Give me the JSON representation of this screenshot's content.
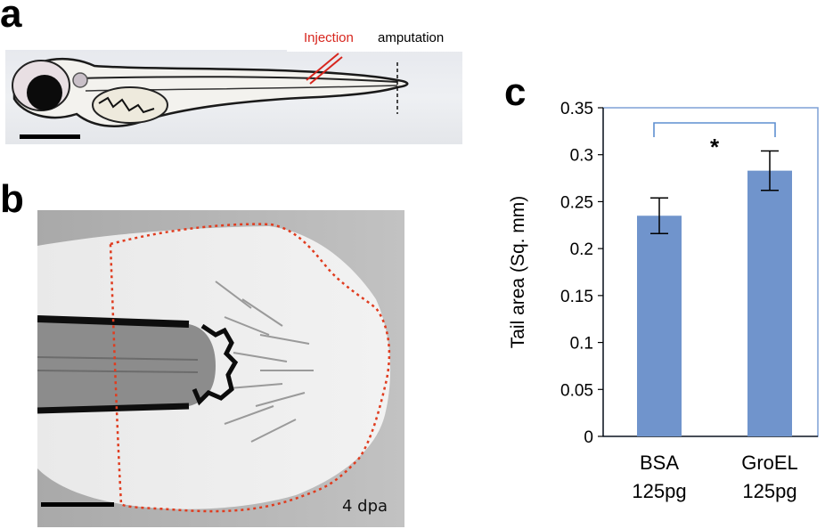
{
  "panels": {
    "a": {
      "letter": "a",
      "injection_label": "Injection",
      "amputation_label": "amputation",
      "colors": {
        "injection": "#d7261e",
        "amputation": "#000000"
      }
    },
    "b": {
      "letter": "b",
      "time_label": "4 dpa",
      "outline_color": "#e03c1f"
    },
    "c": {
      "letter": "c"
    }
  },
  "chart_data": {
    "type": "bar",
    "categories": [
      "BSA\n125pg",
      "GroEL\n125pg"
    ],
    "category_lines": [
      [
        "BSA",
        "125pg"
      ],
      [
        "GroEL",
        "125pg"
      ]
    ],
    "values": [
      0.235,
      0.283
    ],
    "errors": [
      0.019,
      0.021
    ],
    "xlabel": "",
    "ylabel": "Tail area (Sq. mm)",
    "ylim": [
      0,
      0.35
    ],
    "yticks": [
      "0",
      "0.05",
      "0.1",
      "0.15",
      "0.2",
      "0.25",
      "0.3",
      "0.35"
    ],
    "ytick_values": [
      0,
      0.05,
      0.1,
      0.15,
      0.2,
      0.25,
      0.3,
      0.35
    ],
    "significance": {
      "between": [
        0,
        1
      ],
      "label": "*"
    },
    "grid": false,
    "colors": {
      "bar": "#7094cc",
      "frame": "#7ea1d6",
      "bracket": "#5f8fd0"
    }
  }
}
